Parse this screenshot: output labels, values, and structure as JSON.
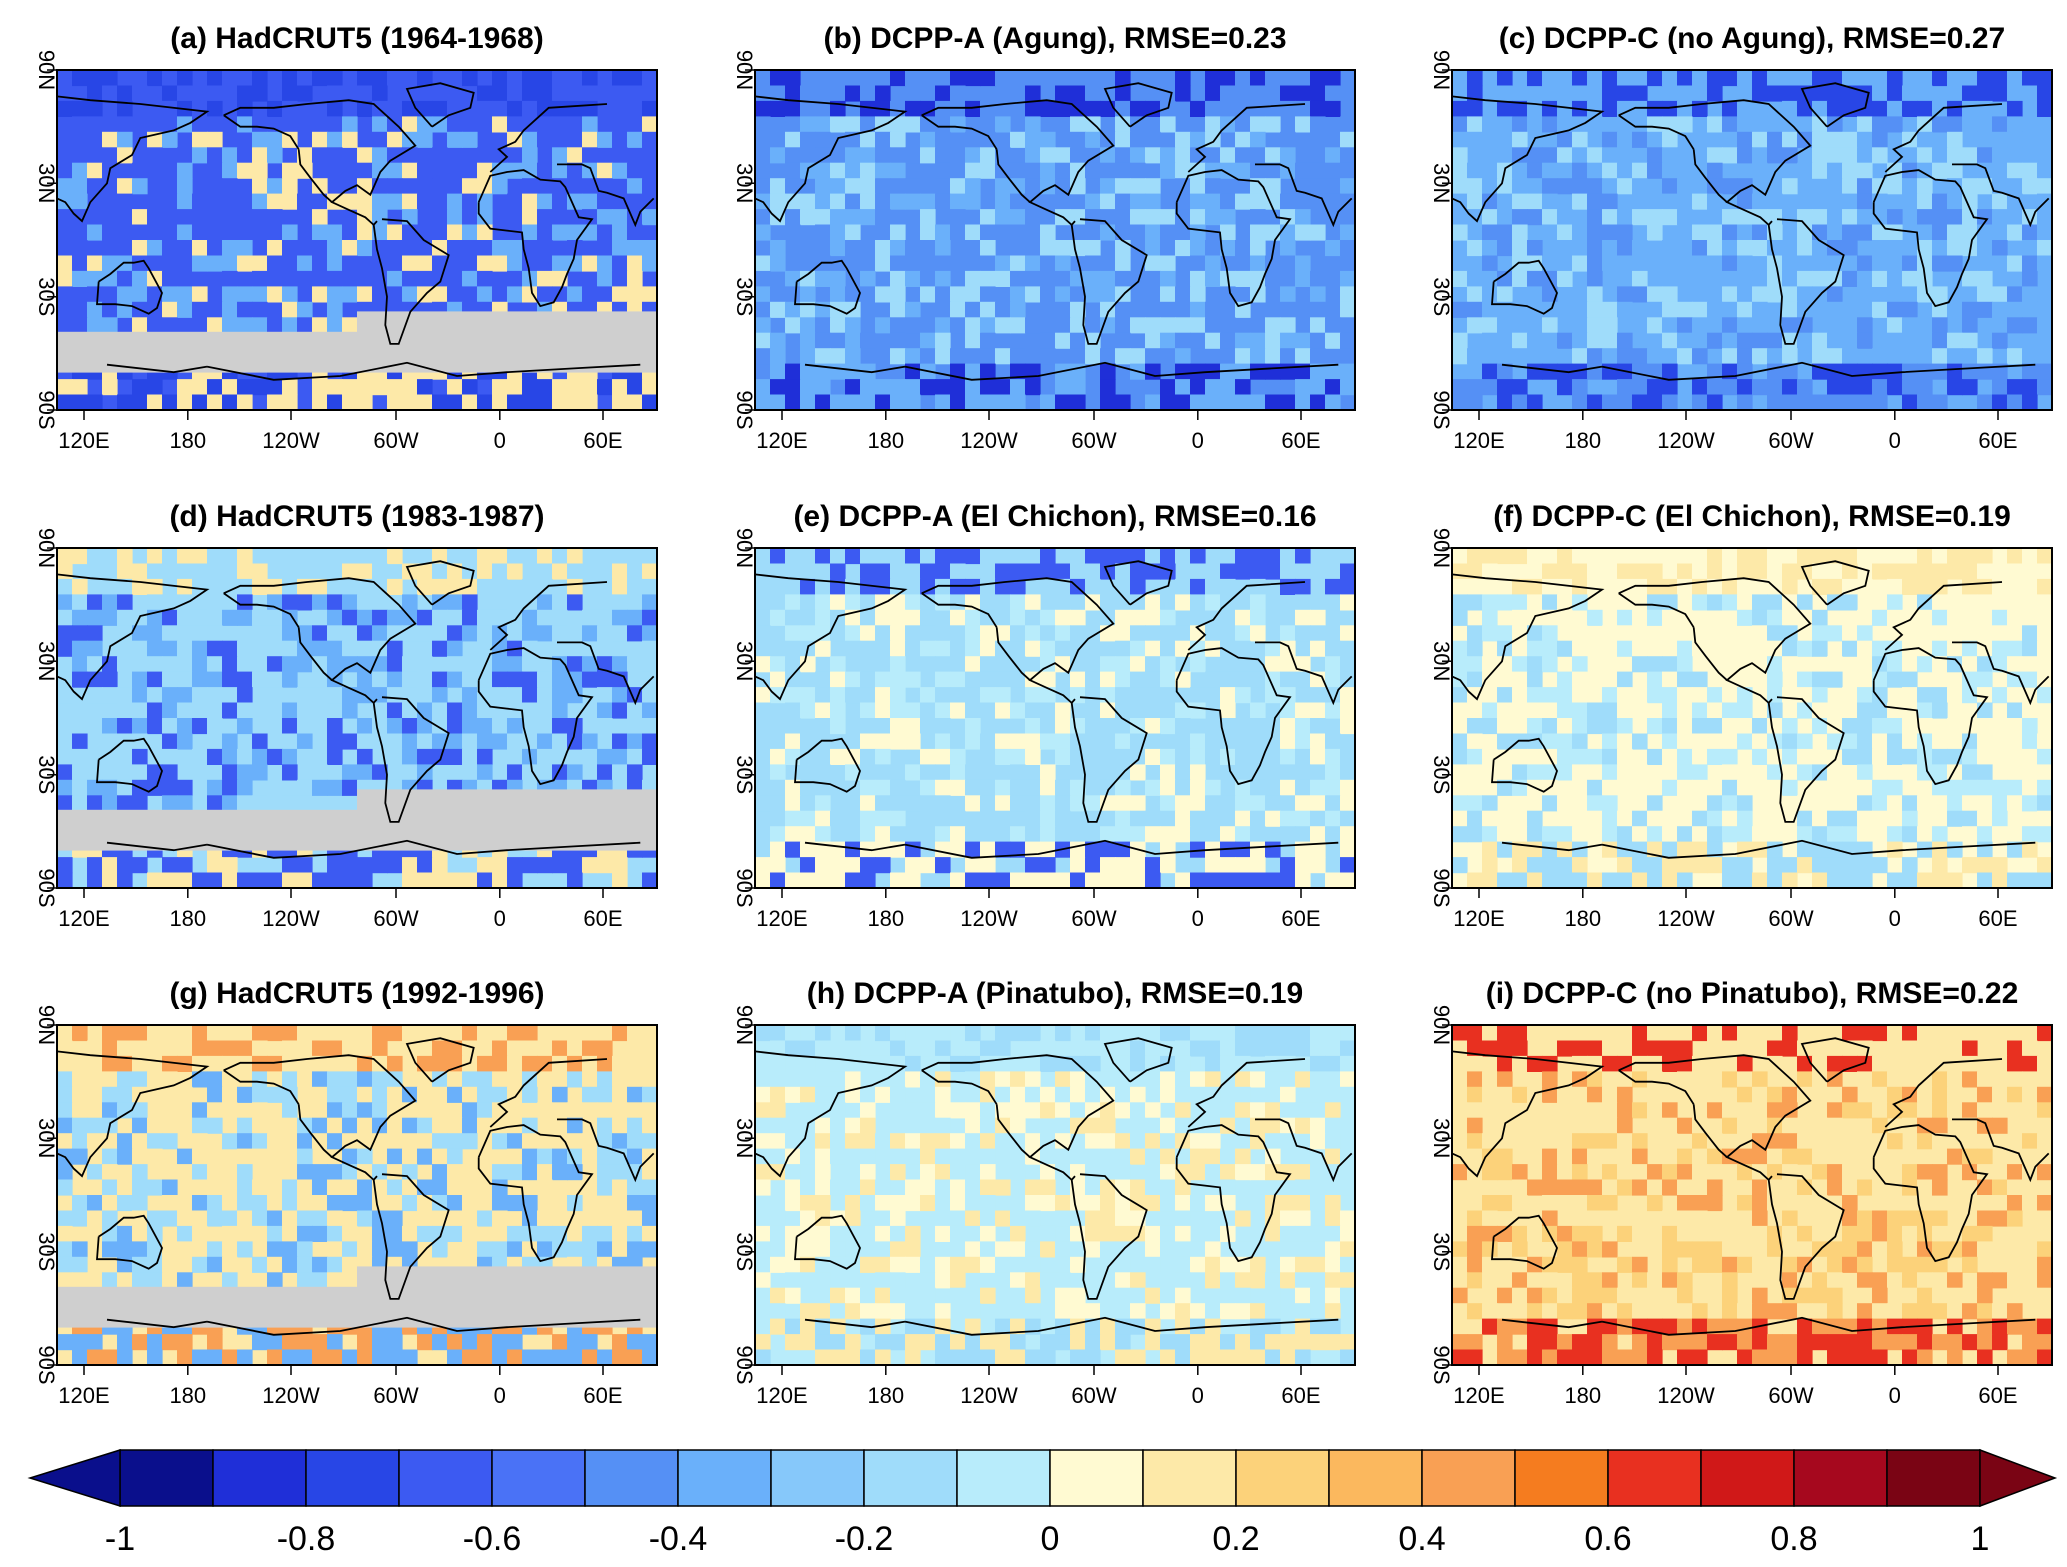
{
  "chart_data": {
    "type": "heatmap",
    "description_kind": "map-grid",
    "panels": [
      {
        "id": "a",
        "title": "(a) HadCRUT5 (1964-1968)",
        "source": "HadCRUT5",
        "years": "1964-1968",
        "rmse": null,
        "mean_anomaly": -0.45,
        "has_missing_data": true,
        "fill": [
          "#3c5af2",
          "#6ab0fa",
          "#2846e6",
          "#fde9a8"
        ]
      },
      {
        "id": "b",
        "title": "(b) DCPP-A (Agung), RMSE=0.23",
        "source": "DCPP-A",
        "event": "Agung",
        "rmse": 0.23,
        "mean_anomaly": -0.35,
        "has_missing_data": false,
        "fill": [
          "#5590f5",
          "#9fdcfa",
          "#1f2fd8",
          "#6ab0fa"
        ]
      },
      {
        "id": "c",
        "title": "(c) DCPP-C (no Agung), RMSE=0.27",
        "source": "DCPP-C",
        "event": "no Agung",
        "rmse": 0.27,
        "mean_anomaly": -0.3,
        "has_missing_data": false,
        "fill": [
          "#6ab0fa",
          "#9fdcfa",
          "#2846e6",
          "#5590f5"
        ]
      },
      {
        "id": "d",
        "title": "(d) HadCRUT5 (1983-1987)",
        "source": "HadCRUT5",
        "years": "1983-1987",
        "rmse": null,
        "mean_anomaly": -0.1,
        "has_missing_data": true,
        "fill": [
          "#9fdcfa",
          "#6ab0fa",
          "#fde9a8",
          "#3c5af2"
        ]
      },
      {
        "id": "e",
        "title": "(e) DCPP-A (El Chichon), RMSE=0.16",
        "source": "DCPP-A",
        "event": "El Chichon",
        "rmse": 0.16,
        "mean_anomaly": -0.15,
        "has_missing_data": false,
        "fill": [
          "#9fdcfa",
          "#b8ecfb",
          "#3c5af2",
          "#fffad2"
        ]
      },
      {
        "id": "f",
        "title": "(f) DCPP-C (El Chichon), RMSE=0.19",
        "source": "DCPP-C",
        "event": "El Chichon",
        "rmse": 0.19,
        "mean_anomaly": 0.02,
        "has_missing_data": false,
        "fill": [
          "#fffad2",
          "#b8ecfb",
          "#fde9a8",
          "#9fdcfa"
        ]
      },
      {
        "id": "g",
        "title": "(g) HadCRUT5 (1992-1996)",
        "source": "HadCRUT5",
        "years": "1992-1996",
        "rmse": null,
        "mean_anomaly": 0.05,
        "has_missing_data": true,
        "fill": [
          "#fde9a8",
          "#9fdcfa",
          "#f9a054",
          "#6ab0fa"
        ]
      },
      {
        "id": "h",
        "title": "(h) DCPP-A (Pinatubo), RMSE=0.19",
        "source": "DCPP-A",
        "event": "Pinatubo",
        "rmse": 0.19,
        "mean_anomaly": -0.05,
        "has_missing_data": false,
        "fill": [
          "#b8ecfb",
          "#fffad2",
          "#9fdcfa",
          "#fde9a8"
        ]
      },
      {
        "id": "i",
        "title": "(i) DCPP-C (no Pinatubo), RMSE=0.22",
        "source": "DCPP-C",
        "event": "no Pinatubo",
        "rmse": 0.22,
        "mean_anomaly": 0.3,
        "has_missing_data": false,
        "fill": [
          "#fde9a8",
          "#fcd27a",
          "#e83020",
          "#f9a054"
        ]
      }
    ],
    "x_ticks": [
      "120E",
      "180",
      "120W",
      "60W",
      "0",
      "60E"
    ],
    "y_ticks": [
      "90N",
      "30N",
      "30S",
      "90S"
    ],
    "colorbar": {
      "levels": [
        -1,
        -0.9,
        -0.8,
        -0.7,
        -0.6,
        -0.5,
        -0.4,
        -0.3,
        -0.2,
        -0.1,
        0,
        0.1,
        0.2,
        0.3,
        0.4,
        0.5,
        0.6,
        0.7,
        0.8,
        0.9,
        1
      ],
      "tick_labels": [
        "-1",
        "-0.8",
        "-0.6",
        "-0.4",
        "-0.2",
        "0",
        "0.2",
        "0.4",
        "0.6",
        "0.8",
        "1"
      ],
      "colors": [
        "#0a0f8c",
        "#1f2fd8",
        "#2846e6",
        "#3c5af2",
        "#4a72f6",
        "#5590f5",
        "#6ab0fa",
        "#86c8fa",
        "#9fdcfa",
        "#b8ecfb",
        "#fffad2",
        "#fde9a8",
        "#fcd27a",
        "#fbb85e",
        "#f9a054",
        "#f57c1f",
        "#e83020",
        "#d01818",
        "#a6081e",
        "#7a0414"
      ],
      "extend": "both",
      "orientation": "horizontal",
      "position": "bottom"
    },
    "missing_data_color": "#cfcfcf"
  }
}
